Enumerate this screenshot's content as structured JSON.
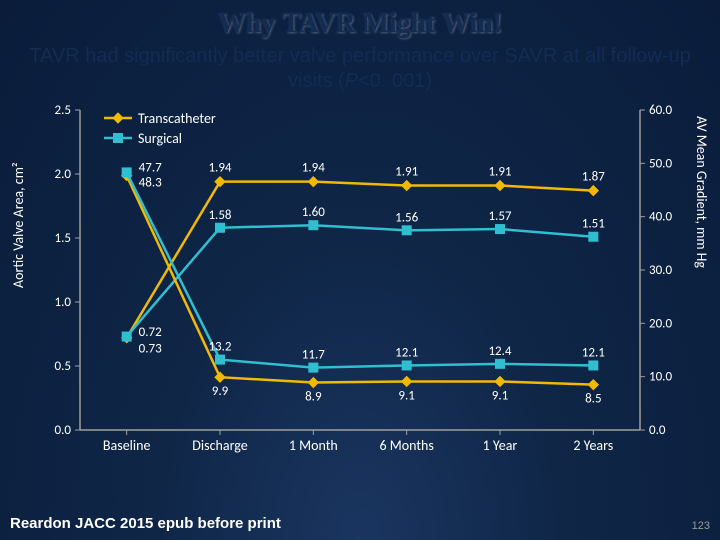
{
  "title": "Why TAVR Might Win!",
  "subtitle_a": "TAVR had significantly better valve performance over SAVR at all follow-up visits (",
  "subtitle_b": "P",
  "subtitle_c": "<0. 001)",
  "footer": "Reardon JACC 2015 epub before print",
  "pagenum": "123",
  "chart": {
    "type": "line-dual-axis",
    "font_family": "Calibri",
    "background": "transparent",
    "axis_color": "#a0a0a0",
    "tick_text_color": "#ffffff",
    "font_size_tick": 13,
    "font_size_label": 14,
    "left_axis": {
      "label": "Aortic Valve Area, cm²",
      "min": 0.0,
      "max": 2.5,
      "step": 0.5,
      "ticks": [
        "0.0",
        "0.5",
        "1.0",
        "1.5",
        "2.0",
        "2.5"
      ]
    },
    "right_axis": {
      "label": "AV Mean Gradient, mm Hg",
      "min": 0.0,
      "max": 60.0,
      "step": 10.0,
      "ticks": [
        "0.0",
        "10.0",
        "20.0",
        "30.0",
        "40.0",
        "50.0",
        "60.0"
      ]
    },
    "categories": [
      "Baseline",
      "Discharge",
      "1 Month",
      "6 Months",
      "1 Year",
      "2 Years"
    ],
    "legend": {
      "items": [
        {
          "label": "Transcatheter",
          "color": "#f2b900",
          "marker": "diamond"
        },
        {
          "label": "Surgical",
          "color": "#2fbfd0",
          "marker": "square"
        }
      ],
      "position": "top-left-inside"
    },
    "series": [
      {
        "name": "Transcatheter_AVA",
        "axis": "left",
        "color": "#f2b900",
        "marker": "diamond",
        "line_width": 2.5,
        "values": [
          0.72,
          1.94,
          1.94,
          1.91,
          1.91,
          1.87
        ],
        "labels": [
          "0.72",
          "1.94",
          "1.94",
          "1.91",
          "1.91",
          "1.87"
        ],
        "label_pos": "above"
      },
      {
        "name": "Surgical_AVA",
        "axis": "left",
        "color": "#2fbfd0",
        "marker": "square",
        "line_width": 2.5,
        "values": [
          0.73,
          1.58,
          1.6,
          1.56,
          1.57,
          1.51
        ],
        "labels": [
          "0.73",
          "1.58",
          "1.60",
          "1.56",
          "1.57",
          "1.51"
        ],
        "label_pos": "above"
      },
      {
        "name": "Transcatheter_Grad",
        "axis": "right",
        "color": "#f2b900",
        "marker": "diamond",
        "line_width": 2.5,
        "values": [
          47.7,
          9.9,
          8.9,
          9.1,
          9.1,
          8.5
        ],
        "labels": [
          "47.7",
          "9.9",
          "8.9",
          "9.1",
          "9.1",
          "8.5"
        ],
        "label_pos": "below"
      },
      {
        "name": "Surgical_Grad",
        "axis": "right",
        "color": "#2fbfd0",
        "marker": "square",
        "line_width": 2.5,
        "values": [
          48.3,
          13.2,
          11.7,
          12.1,
          12.4,
          12.1
        ],
        "labels": [
          "48.3",
          "13.2",
          "11.7",
          "12.1",
          "12.4",
          "12.1"
        ],
        "label_pos": "above"
      }
    ]
  }
}
